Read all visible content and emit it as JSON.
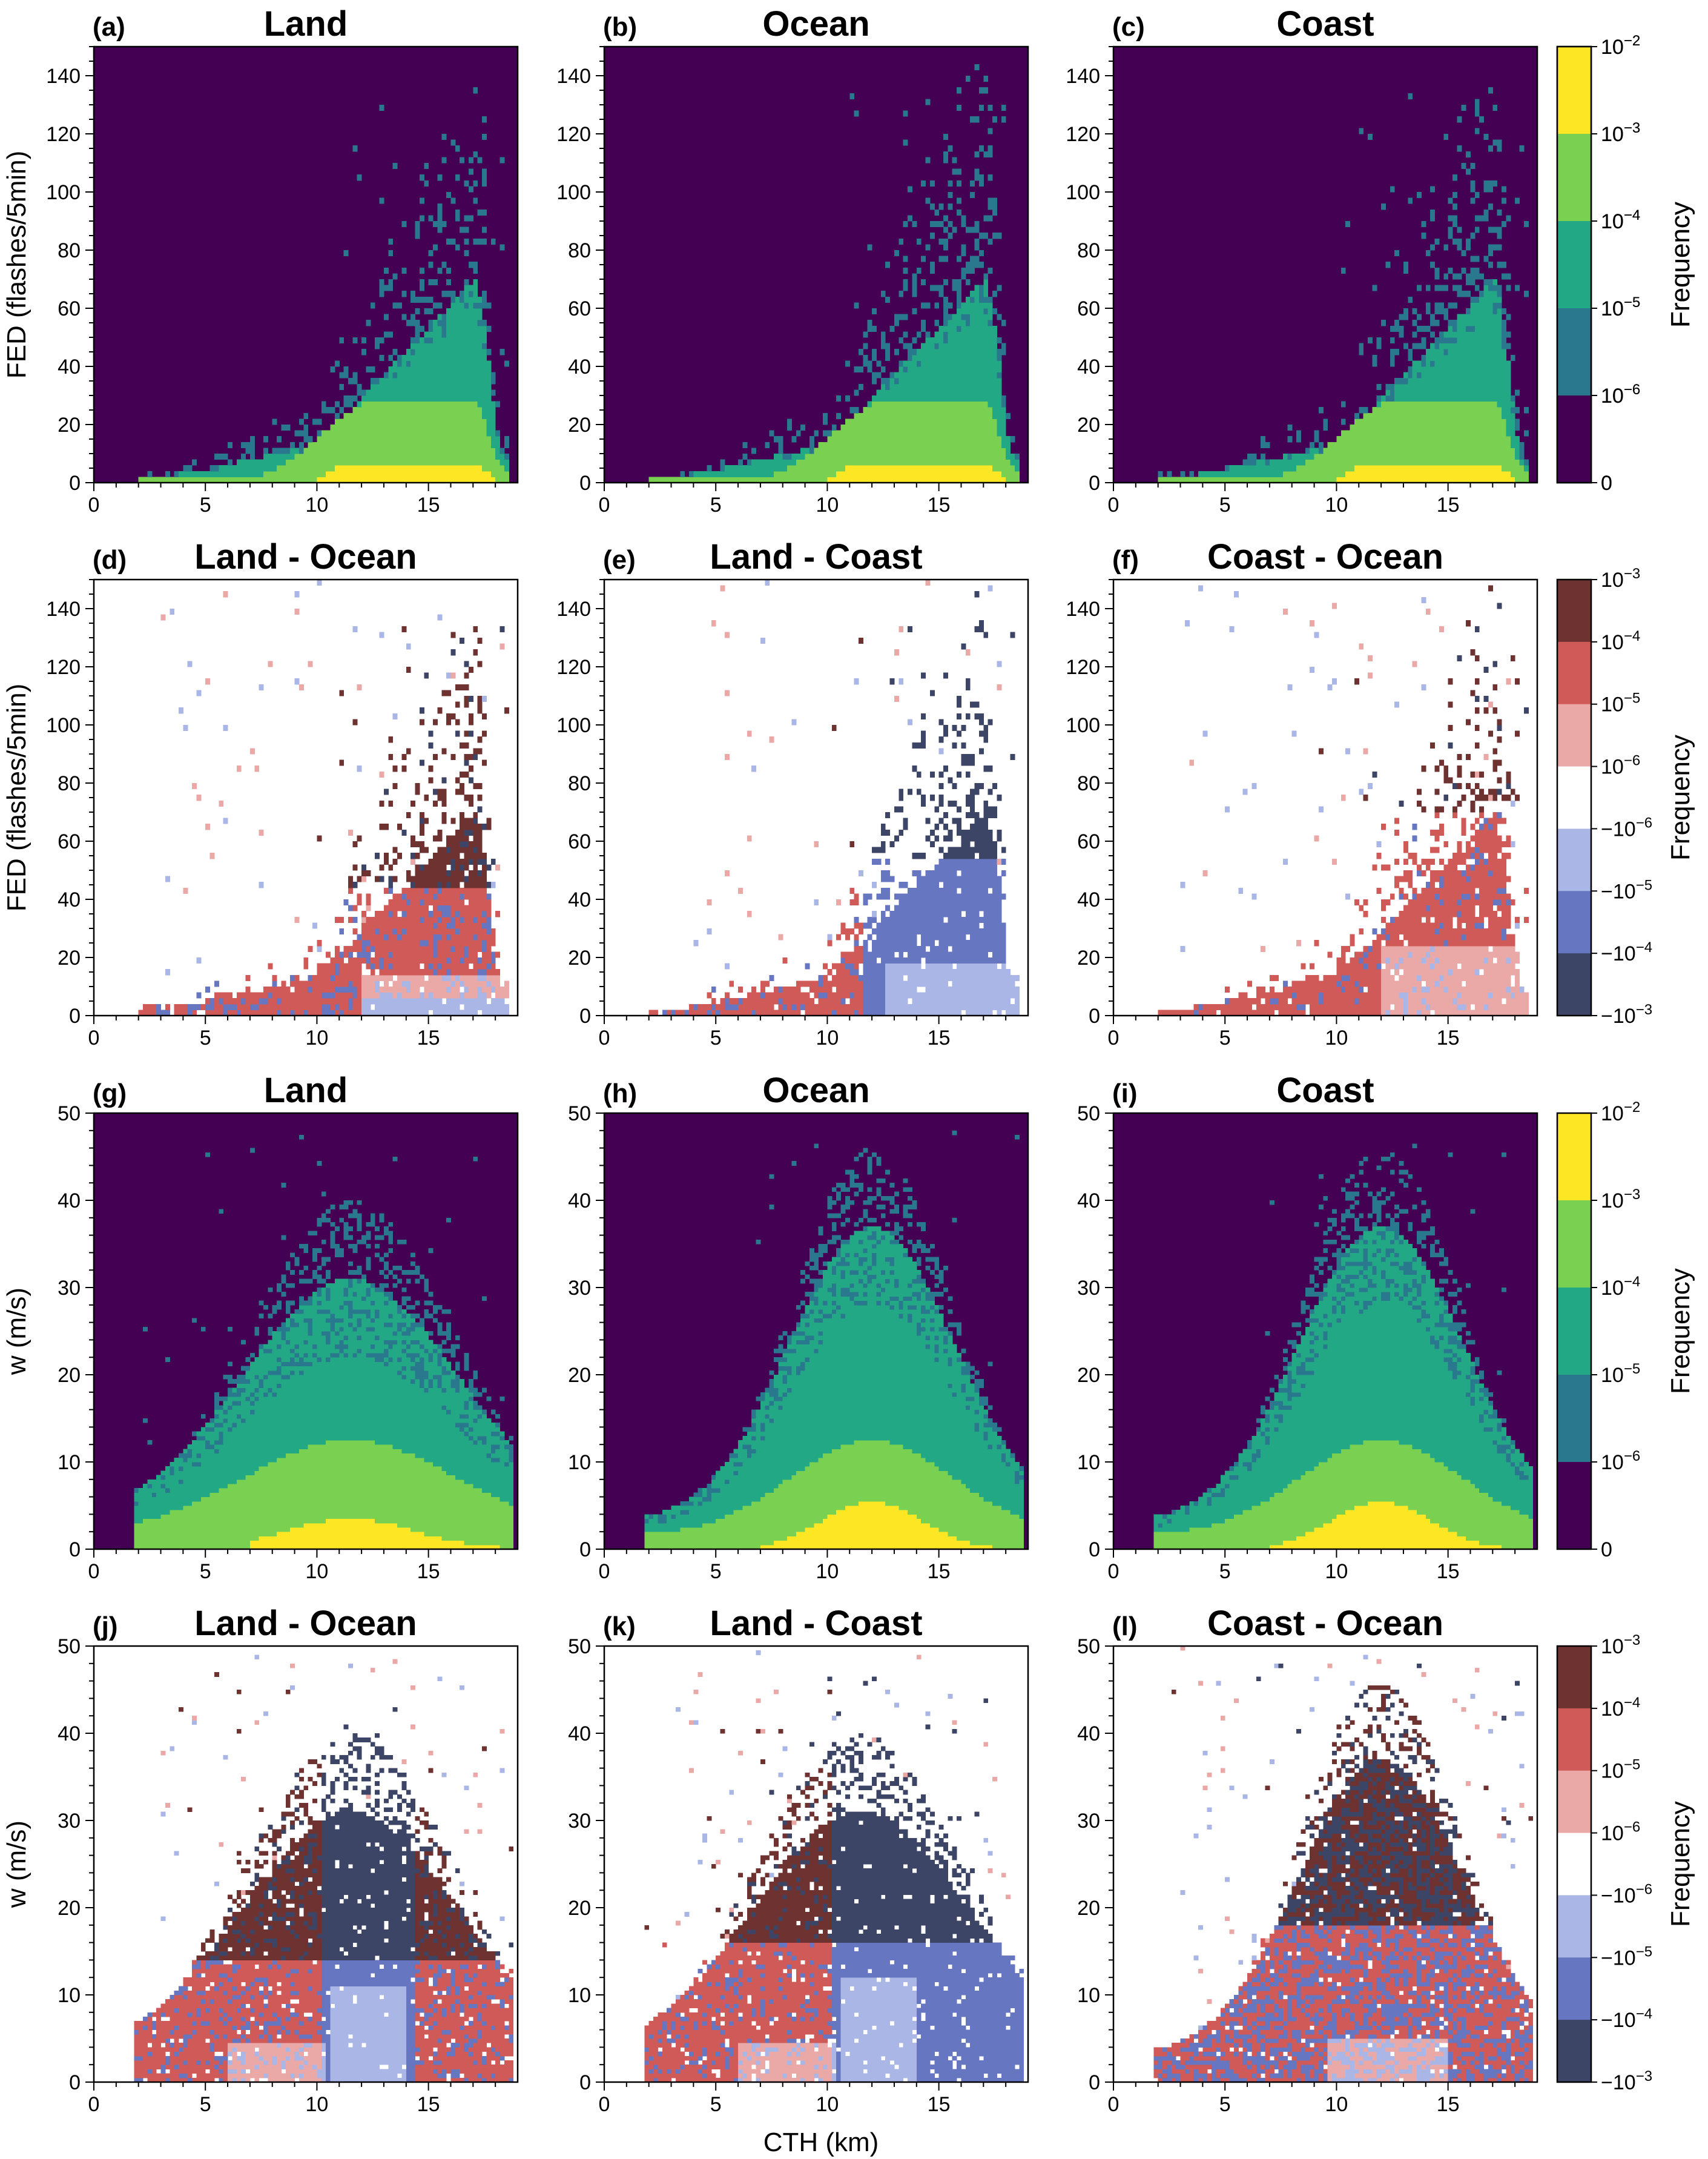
{
  "figure": {
    "shared_xlabel": "CTH (km)"
  },
  "colorbars": {
    "abs": {
      "label": "Frequency",
      "tick_labels": [
        "10^-2",
        "10^-3",
        "10^-4",
        "10^-5",
        "10^-6",
        "0"
      ],
      "colors": [
        "#fde725",
        "#7ad151",
        "#22a884",
        "#2a788e",
        "#440154"
      ]
    },
    "diff": {
      "label": "Frequency",
      "tick_labels": [
        "10^-3",
        "10^-4",
        "10^-5",
        "10^-6",
        "-10^-6",
        "-10^-5",
        "-10^-4",
        "-10^-3"
      ],
      "colors": [
        "#6e3330",
        "#d05a57",
        "#eaa8a6",
        "#ffffff",
        "#aab6e6",
        "#6676c0",
        "#3c4566"
      ]
    }
  },
  "chart_data": [
    {
      "letter": "(a)",
      "title": "Land",
      "type": "heatmap",
      "kind": "abs",
      "dist": "fed",
      "seed": 11,
      "xlabel": "",
      "ylabel": "FED (flashes/5min)",
      "xlim": [
        0,
        19
      ],
      "ylim": [
        0,
        150
      ],
      "xticks": [
        0,
        5,
        10,
        15
      ],
      "yticks": [
        0,
        20,
        40,
        60,
        80,
        100,
        120,
        140
      ],
      "bins": [
        95,
        75
      ],
      "colorbar": "abs"
    },
    {
      "letter": "(b)",
      "title": "Ocean",
      "type": "heatmap",
      "kind": "abs",
      "dist": "fed",
      "seed": 23,
      "xlabel": "",
      "ylabel": "",
      "xlim": [
        0,
        19
      ],
      "ylim": [
        0,
        150
      ],
      "xticks": [
        0,
        5,
        10,
        15
      ],
      "yticks": [
        0,
        20,
        40,
        60,
        80,
        100,
        120,
        140
      ],
      "bins": [
        95,
        75
      ],
      "colorbar": ""
    },
    {
      "letter": "(c)",
      "title": "Coast",
      "type": "heatmap",
      "kind": "abs",
      "dist": "fed",
      "seed": 37,
      "xlabel": "",
      "ylabel": "",
      "xlim": [
        0,
        19
      ],
      "ylim": [
        0,
        150
      ],
      "xticks": [
        0,
        5,
        10,
        15
      ],
      "yticks": [
        0,
        20,
        40,
        60,
        80,
        100,
        120,
        140
      ],
      "bins": [
        95,
        75
      ],
      "colorbar": "abs"
    },
    {
      "letter": "(d)",
      "title": "Land - Ocean",
      "type": "heatmap",
      "kind": "diff",
      "dist": "fed",
      "variant": "lo",
      "seed": 41,
      "xlabel": "",
      "ylabel": "FED (flashes/5min)",
      "xlim": [
        0,
        19
      ],
      "ylim": [
        0,
        150
      ],
      "xticks": [
        0,
        5,
        10,
        15
      ],
      "yticks": [
        0,
        20,
        40,
        60,
        80,
        100,
        120,
        140
      ],
      "bins": [
        95,
        75
      ],
      "colorbar": ""
    },
    {
      "letter": "(e)",
      "title": "Land - Coast",
      "type": "heatmap",
      "kind": "diff",
      "dist": "fed",
      "variant": "lc",
      "seed": 53,
      "xlabel": "",
      "ylabel": "",
      "xlim": [
        0,
        19
      ],
      "ylim": [
        0,
        150
      ],
      "xticks": [
        0,
        5,
        10,
        15
      ],
      "yticks": [
        0,
        20,
        40,
        60,
        80,
        100,
        120,
        140
      ],
      "bins": [
        95,
        75
      ],
      "colorbar": ""
    },
    {
      "letter": "(f)",
      "title": "Coast - Ocean",
      "type": "heatmap",
      "kind": "diff",
      "dist": "fed",
      "variant": "co",
      "seed": 67,
      "xlabel": "",
      "ylabel": "",
      "xlim": [
        0,
        19
      ],
      "ylim": [
        0,
        150
      ],
      "xticks": [
        0,
        5,
        10,
        15
      ],
      "yticks": [
        0,
        20,
        40,
        60,
        80,
        100,
        120,
        140
      ],
      "bins": [
        95,
        75
      ],
      "colorbar": "diff"
    },
    {
      "letter": "(g)",
      "title": "Land",
      "type": "heatmap",
      "kind": "abs",
      "dist": "w",
      "variant": "land",
      "seed": 71,
      "xlabel": "",
      "ylabel": "w (m/s)",
      "xlim": [
        0,
        19
      ],
      "ylim": [
        0,
        50
      ],
      "xticks": [
        0,
        5,
        10,
        15
      ],
      "yticks": [
        0,
        10,
        20,
        30,
        40,
        50
      ],
      "bins": [
        95,
        100
      ],
      "colorbar": ""
    },
    {
      "letter": "(h)",
      "title": "Ocean",
      "type": "heatmap",
      "kind": "abs",
      "dist": "w",
      "variant": "ocean",
      "seed": 83,
      "xlabel": "",
      "ylabel": "",
      "xlim": [
        0,
        19
      ],
      "ylim": [
        0,
        50
      ],
      "xticks": [
        0,
        5,
        10,
        15
      ],
      "yticks": [
        0,
        10,
        20,
        30,
        40,
        50
      ],
      "bins": [
        95,
        100
      ],
      "colorbar": ""
    },
    {
      "letter": "(i)",
      "title": "Coast",
      "type": "heatmap",
      "kind": "abs",
      "dist": "w",
      "variant": "coast",
      "seed": 97,
      "xlabel": "",
      "ylabel": "",
      "xlim": [
        0,
        19
      ],
      "ylim": [
        0,
        50
      ],
      "xticks": [
        0,
        5,
        10,
        15
      ],
      "yticks": [
        0,
        10,
        20,
        30,
        40,
        50
      ],
      "bins": [
        95,
        100
      ],
      "colorbar": "abs"
    },
    {
      "letter": "(j)",
      "title": "Land - Ocean",
      "type": "heatmap",
      "kind": "diff",
      "dist": "w",
      "variant": "lo",
      "seed": 101,
      "xlabel": "",
      "ylabel": "w (m/s)",
      "xlim": [
        0,
        19
      ],
      "ylim": [
        0,
        50
      ],
      "xticks": [
        0,
        5,
        10,
        15
      ],
      "yticks": [
        0,
        10,
        20,
        30,
        40,
        50
      ],
      "bins": [
        95,
        100
      ],
      "colorbar": ""
    },
    {
      "letter": "(k)",
      "title": "Land - Coast",
      "type": "heatmap",
      "kind": "diff",
      "dist": "w",
      "variant": "lc",
      "seed": 113,
      "xlabel": "",
      "ylabel": "",
      "xlim": [
        0,
        19
      ],
      "ylim": [
        0,
        50
      ],
      "xticks": [
        0,
        5,
        10,
        15
      ],
      "yticks": [
        0,
        10,
        20,
        30,
        40,
        50
      ],
      "bins": [
        95,
        100
      ],
      "colorbar": ""
    },
    {
      "letter": "(l)",
      "title": "Coast - Ocean",
      "type": "heatmap",
      "kind": "diff",
      "dist": "w",
      "variant": "co",
      "seed": 127,
      "xlabel": "",
      "ylabel": "",
      "xlim": [
        0,
        19
      ],
      "ylim": [
        0,
        50
      ],
      "xticks": [
        0,
        5,
        10,
        15
      ],
      "yticks": [
        0,
        10,
        20,
        30,
        40,
        50
      ],
      "bins": [
        95,
        100
      ],
      "colorbar": "diff"
    }
  ]
}
